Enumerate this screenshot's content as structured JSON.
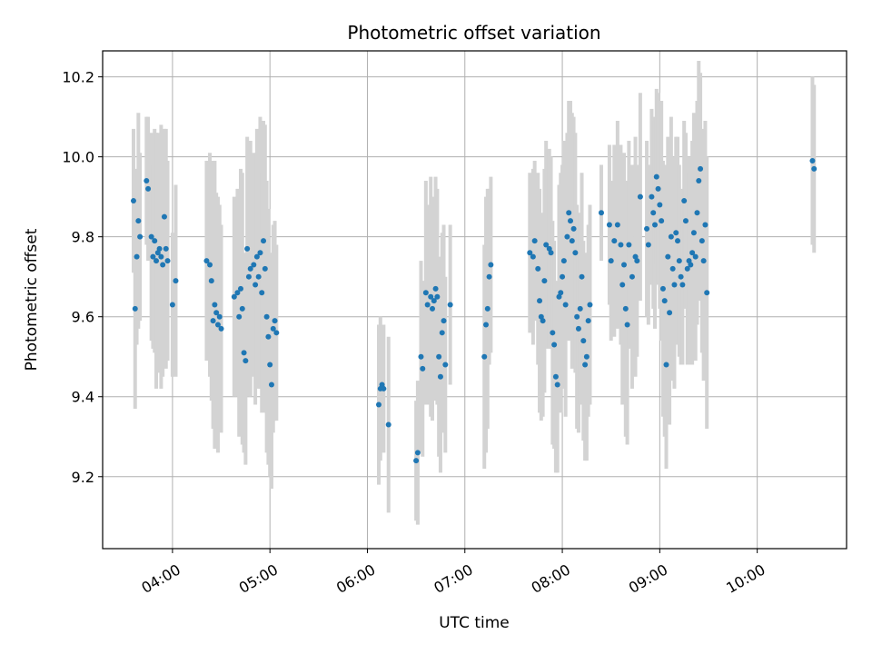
{
  "chart_data": {
    "type": "scatter",
    "title": "Photometric offset variation",
    "xlabel": "UTC time",
    "ylabel": "Photometric offset",
    "xlim": [
      "03:17",
      "10:55"
    ],
    "ylim": [
      9.02,
      10.265
    ],
    "x_ticks": [
      "04:00",
      "05:00",
      "06:00",
      "07:00",
      "08:00",
      "09:00",
      "10:00"
    ],
    "y_ticks": [
      9.2,
      9.4,
      9.6,
      9.8,
      10.0,
      10.2
    ],
    "grid": true,
    "colors": {
      "point": "#1f77b4",
      "errorbar": "#d3d3d3",
      "grid": "#b0b0b0"
    },
    "series": [
      {
        "points": [
          {
            "x": "03:36",
            "y": 9.89,
            "err": 0.18
          },
          {
            "x": "03:37",
            "y": 9.62,
            "err": 0.25
          },
          {
            "x": "03:38",
            "y": 9.75,
            "err": 0.22
          },
          {
            "x": "03:39",
            "y": 9.84,
            "err": 0.27
          },
          {
            "x": "03:40",
            "y": 9.8,
            "err": 0.21
          },
          {
            "x": "03:44",
            "y": 9.94,
            "err": 0.16
          },
          {
            "x": "03:45",
            "y": 9.92,
            "err": 0.18
          },
          {
            "x": "03:47",
            "y": 9.8,
            "err": 0.26
          },
          {
            "x": "03:48",
            "y": 9.75,
            "err": 0.23
          },
          {
            "x": "03:49",
            "y": 9.79,
            "err": 0.28
          },
          {
            "x": "03:50",
            "y": 9.74,
            "err": 0.32
          },
          {
            "x": "03:51",
            "y": 9.76,
            "err": 0.3
          },
          {
            "x": "03:52",
            "y": 9.77,
            "err": 0.25
          },
          {
            "x": "03:53",
            "y": 9.75,
            "err": 0.33
          },
          {
            "x": "03:54",
            "y": 9.73,
            "err": 0.28
          },
          {
            "x": "03:55",
            "y": 9.85,
            "err": 0.22
          },
          {
            "x": "03:56",
            "y": 9.77,
            "err": 0.3
          },
          {
            "x": "03:57",
            "y": 9.74,
            "err": 0.25
          },
          {
            "x": "04:00",
            "y": 9.63,
            "err": 0.18
          },
          {
            "x": "04:02",
            "y": 9.69,
            "err": 0.24
          },
          {
            "x": "04:21",
            "y": 9.74,
            "err": 0.25
          },
          {
            "x": "04:23",
            "y": 9.73,
            "err": 0.28
          },
          {
            "x": "04:24",
            "y": 9.69,
            "err": 0.3
          },
          {
            "x": "04:25",
            "y": 9.59,
            "err": 0.27
          },
          {
            "x": "04:26",
            "y": 9.63,
            "err": 0.36
          },
          {
            "x": "04:27",
            "y": 9.61,
            "err": 0.3
          },
          {
            "x": "04:28",
            "y": 9.58,
            "err": 0.32
          },
          {
            "x": "04:29",
            "y": 9.6,
            "err": 0.28
          },
          {
            "x": "04:30",
            "y": 9.57,
            "err": 0.26
          },
          {
            "x": "04:38",
            "y": 9.65,
            "err": 0.25
          },
          {
            "x": "04:40",
            "y": 9.66,
            "err": 0.26
          },
          {
            "x": "04:41",
            "y": 9.6,
            "err": 0.3
          },
          {
            "x": "04:42",
            "y": 9.67,
            "err": 0.3
          },
          {
            "x": "04:43",
            "y": 9.62,
            "err": 0.34
          },
          {
            "x": "04:44",
            "y": 9.51,
            "err": 0.25
          },
          {
            "x": "04:45",
            "y": 9.49,
            "err": 0.26
          },
          {
            "x": "04:46",
            "y": 9.77,
            "err": 0.28
          },
          {
            "x": "04:47",
            "y": 9.7,
            "err": 0.3
          },
          {
            "x": "04:48",
            "y": 9.72,
            "err": 0.32
          },
          {
            "x": "04:50",
            "y": 9.73,
            "err": 0.28
          },
          {
            "x": "04:51",
            "y": 9.68,
            "err": 0.3
          },
          {
            "x": "04:52",
            "y": 9.75,
            "err": 0.32
          },
          {
            "x": "04:53",
            "y": 9.7,
            "err": 0.28
          },
          {
            "x": "04:54",
            "y": 9.76,
            "err": 0.34
          },
          {
            "x": "04:55",
            "y": 9.66,
            "err": 0.3
          },
          {
            "x": "04:56",
            "y": 9.79,
            "err": 0.3
          },
          {
            "x": "04:57",
            "y": 9.72,
            "err": 0.36
          },
          {
            "x": "04:58",
            "y": 9.6,
            "err": 0.34
          },
          {
            "x": "04:59",
            "y": 9.55,
            "err": 0.32
          },
          {
            "x": "05:00",
            "y": 9.48,
            "err": 0.28
          },
          {
            "x": "05:01",
            "y": 9.43,
            "err": 0.26
          },
          {
            "x": "05:02",
            "y": 9.57,
            "err": 0.26
          },
          {
            "x": "05:03",
            "y": 9.59,
            "err": 0.25
          },
          {
            "x": "05:04",
            "y": 9.56,
            "err": 0.22
          },
          {
            "x": "06:07",
            "y": 9.38,
            "err": 0.2
          },
          {
            "x": "06:08",
            "y": 9.42,
            "err": 0.18
          },
          {
            "x": "06:09",
            "y": 9.43,
            "err": 0.15
          },
          {
            "x": "06:10",
            "y": 9.42,
            "err": 0.16
          },
          {
            "x": "06:13",
            "y": 9.33,
            "err": 0.22
          },
          {
            "x": "06:30",
            "y": 9.24,
            "err": 0.15
          },
          {
            "x": "06:31",
            "y": 9.26,
            "err": 0.18
          },
          {
            "x": "06:33",
            "y": 9.5,
            "err": 0.24
          },
          {
            "x": "06:34",
            "y": 9.47,
            "err": 0.22
          },
          {
            "x": "06:36",
            "y": 9.66,
            "err": 0.28
          },
          {
            "x": "06:37",
            "y": 9.63,
            "err": 0.25
          },
          {
            "x": "06:39",
            "y": 9.65,
            "err": 0.3
          },
          {
            "x": "06:40",
            "y": 9.62,
            "err": 0.28
          },
          {
            "x": "06:41",
            "y": 9.64,
            "err": 0.24
          },
          {
            "x": "06:42",
            "y": 9.67,
            "err": 0.28
          },
          {
            "x": "06:43",
            "y": 9.65,
            "err": 0.27
          },
          {
            "x": "06:44",
            "y": 9.5,
            "err": 0.25
          },
          {
            "x": "06:45",
            "y": 9.45,
            "err": 0.24
          },
          {
            "x": "06:46",
            "y": 9.56,
            "err": 0.25
          },
          {
            "x": "06:47",
            "y": 9.59,
            "err": 0.24
          },
          {
            "x": "06:48",
            "y": 9.48,
            "err": 0.22
          },
          {
            "x": "06:51",
            "y": 9.63,
            "err": 0.2
          },
          {
            "x": "07:12",
            "y": 9.5,
            "err": 0.28
          },
          {
            "x": "07:13",
            "y": 9.58,
            "err": 0.32
          },
          {
            "x": "07:14",
            "y": 9.62,
            "err": 0.3
          },
          {
            "x": "07:15",
            "y": 9.7,
            "err": 0.22
          },
          {
            "x": "07:16",
            "y": 9.73,
            "err": 0.22
          },
          {
            "x": "07:40",
            "y": 9.76,
            "err": 0.2
          },
          {
            "x": "07:42",
            "y": 9.75,
            "err": 0.22
          },
          {
            "x": "07:43",
            "y": 9.79,
            "err": 0.2
          },
          {
            "x": "07:45",
            "y": 9.72,
            "err": 0.24
          },
          {
            "x": "07:46",
            "y": 9.64,
            "err": 0.28
          },
          {
            "x": "07:47",
            "y": 9.6,
            "err": 0.26
          },
          {
            "x": "07:48",
            "y": 9.59,
            "err": 0.24
          },
          {
            "x": "07:49",
            "y": 9.69,
            "err": 0.28
          },
          {
            "x": "07:50",
            "y": 9.78,
            "err": 0.26
          },
          {
            "x": "07:52",
            "y": 9.77,
            "err": 0.25
          },
          {
            "x": "07:53",
            "y": 9.76,
            "err": 0.24
          },
          {
            "x": "07:54",
            "y": 9.56,
            "err": 0.28
          },
          {
            "x": "07:55",
            "y": 9.53,
            "err": 0.26
          },
          {
            "x": "07:56",
            "y": 9.45,
            "err": 0.24
          },
          {
            "x": "07:57",
            "y": 9.43,
            "err": 0.22
          },
          {
            "x": "07:58",
            "y": 9.65,
            "err": 0.28
          },
          {
            "x": "07:59",
            "y": 9.66,
            "err": 0.3
          },
          {
            "x": "08:00",
            "y": 9.7,
            "err": 0.28
          },
          {
            "x": "08:01",
            "y": 9.74,
            "err": 0.3
          },
          {
            "x": "08:02",
            "y": 9.63,
            "err": 0.28
          },
          {
            "x": "08:03",
            "y": 9.8,
            "err": 0.26
          },
          {
            "x": "08:04",
            "y": 9.86,
            "err": 0.28
          },
          {
            "x": "08:05",
            "y": 9.84,
            "err": 0.3
          },
          {
            "x": "08:06",
            "y": 9.79,
            "err": 0.32
          },
          {
            "x": "08:07",
            "y": 9.82,
            "err": 0.28
          },
          {
            "x": "08:08",
            "y": 9.76,
            "err": 0.3
          },
          {
            "x": "08:09",
            "y": 9.6,
            "err": 0.28
          },
          {
            "x": "08:10",
            "y": 9.57,
            "err": 0.26
          },
          {
            "x": "08:11",
            "y": 9.62,
            "err": 0.24
          },
          {
            "x": "08:12",
            "y": 9.7,
            "err": 0.26
          },
          {
            "x": "08:13",
            "y": 9.54,
            "err": 0.25
          },
          {
            "x": "08:14",
            "y": 9.48,
            "err": 0.24
          },
          {
            "x": "08:15",
            "y": 9.5,
            "err": 0.26
          },
          {
            "x": "08:16",
            "y": 9.59,
            "err": 0.24
          },
          {
            "x": "08:17",
            "y": 9.63,
            "err": 0.25
          },
          {
            "x": "08:24",
            "y": 9.86,
            "err": 0.12
          },
          {
            "x": "08:29",
            "y": 9.83,
            "err": 0.2
          },
          {
            "x": "08:30",
            "y": 9.74,
            "err": 0.2
          },
          {
            "x": "08:32",
            "y": 9.79,
            "err": 0.24
          },
          {
            "x": "08:34",
            "y": 9.83,
            "err": 0.26
          },
          {
            "x": "08:36",
            "y": 9.78,
            "err": 0.25
          },
          {
            "x": "08:37",
            "y": 9.68,
            "err": 0.3
          },
          {
            "x": "08:38",
            "y": 9.73,
            "err": 0.28
          },
          {
            "x": "08:39",
            "y": 9.62,
            "err": 0.32
          },
          {
            "x": "08:40",
            "y": 9.58,
            "err": 0.3
          },
          {
            "x": "08:41",
            "y": 9.78,
            "err": 0.26
          },
          {
            "x": "08:43",
            "y": 9.7,
            "err": 0.28
          },
          {
            "x": "08:45",
            "y": 9.75,
            "err": 0.3
          },
          {
            "x": "08:46",
            "y": 9.74,
            "err": 0.24
          },
          {
            "x": "08:48",
            "y": 9.9,
            "err": 0.26
          },
          {
            "x": "08:52",
            "y": 9.82,
            "err": 0.22
          },
          {
            "x": "08:53",
            "y": 9.78,
            "err": 0.2
          },
          {
            "x": "08:55",
            "y": 9.9,
            "err": 0.22
          },
          {
            "x": "08:56",
            "y": 9.86,
            "err": 0.24
          },
          {
            "x": "08:57",
            "y": 9.83,
            "err": 0.26
          },
          {
            "x": "08:58",
            "y": 9.95,
            "err": 0.22
          },
          {
            "x": "08:59",
            "y": 9.92,
            "err": 0.24
          },
          {
            "x": "09:00",
            "y": 9.88,
            "err": 0.26
          },
          {
            "x": "09:01",
            "y": 9.84,
            "err": 0.3
          },
          {
            "x": "09:02",
            "y": 9.67,
            "err": 0.32
          },
          {
            "x": "09:03",
            "y": 9.64,
            "err": 0.34
          },
          {
            "x": "09:04",
            "y": 9.48,
            "err": 0.26
          },
          {
            "x": "09:05",
            "y": 9.75,
            "err": 0.3
          },
          {
            "x": "09:06",
            "y": 9.61,
            "err": 0.28
          },
          {
            "x": "09:07",
            "y": 9.8,
            "err": 0.3
          },
          {
            "x": "09:08",
            "y": 9.72,
            "err": 0.28
          },
          {
            "x": "09:09",
            "y": 9.68,
            "err": 0.26
          },
          {
            "x": "09:10",
            "y": 9.81,
            "err": 0.24
          },
          {
            "x": "09:11",
            "y": 9.79,
            "err": 0.26
          },
          {
            "x": "09:12",
            "y": 9.74,
            "err": 0.24
          },
          {
            "x": "09:13",
            "y": 9.7,
            "err": 0.22
          },
          {
            "x": "09:14",
            "y": 9.68,
            "err": 0.2
          },
          {
            "x": "09:15",
            "y": 9.89,
            "err": 0.2
          },
          {
            "x": "09:16",
            "y": 9.84,
            "err": 0.22
          },
          {
            "x": "09:17",
            "y": 9.72,
            "err": 0.24
          },
          {
            "x": "09:18",
            "y": 9.74,
            "err": 0.26
          },
          {
            "x": "09:19",
            "y": 9.73,
            "err": 0.24
          },
          {
            "x": "09:20",
            "y": 9.76,
            "err": 0.28
          },
          {
            "x": "09:21",
            "y": 9.81,
            "err": 0.3
          },
          {
            "x": "09:22",
            "y": 9.75,
            "err": 0.26
          },
          {
            "x": "09:23",
            "y": 9.86,
            "err": 0.28
          },
          {
            "x": "09:24",
            "y": 9.94,
            "err": 0.3
          },
          {
            "x": "09:25",
            "y": 9.97,
            "err": 0.24
          },
          {
            "x": "09:26",
            "y": 9.79,
            "err": 0.28
          },
          {
            "x": "09:27",
            "y": 9.74,
            "err": 0.3
          },
          {
            "x": "09:28",
            "y": 9.83,
            "err": 0.26
          },
          {
            "x": "09:29",
            "y": 9.66,
            "err": 0.34
          },
          {
            "x": "10:34",
            "y": 9.99,
            "err": 0.21
          },
          {
            "x": "10:35",
            "y": 9.97,
            "err": 0.21
          }
        ]
      }
    ]
  }
}
